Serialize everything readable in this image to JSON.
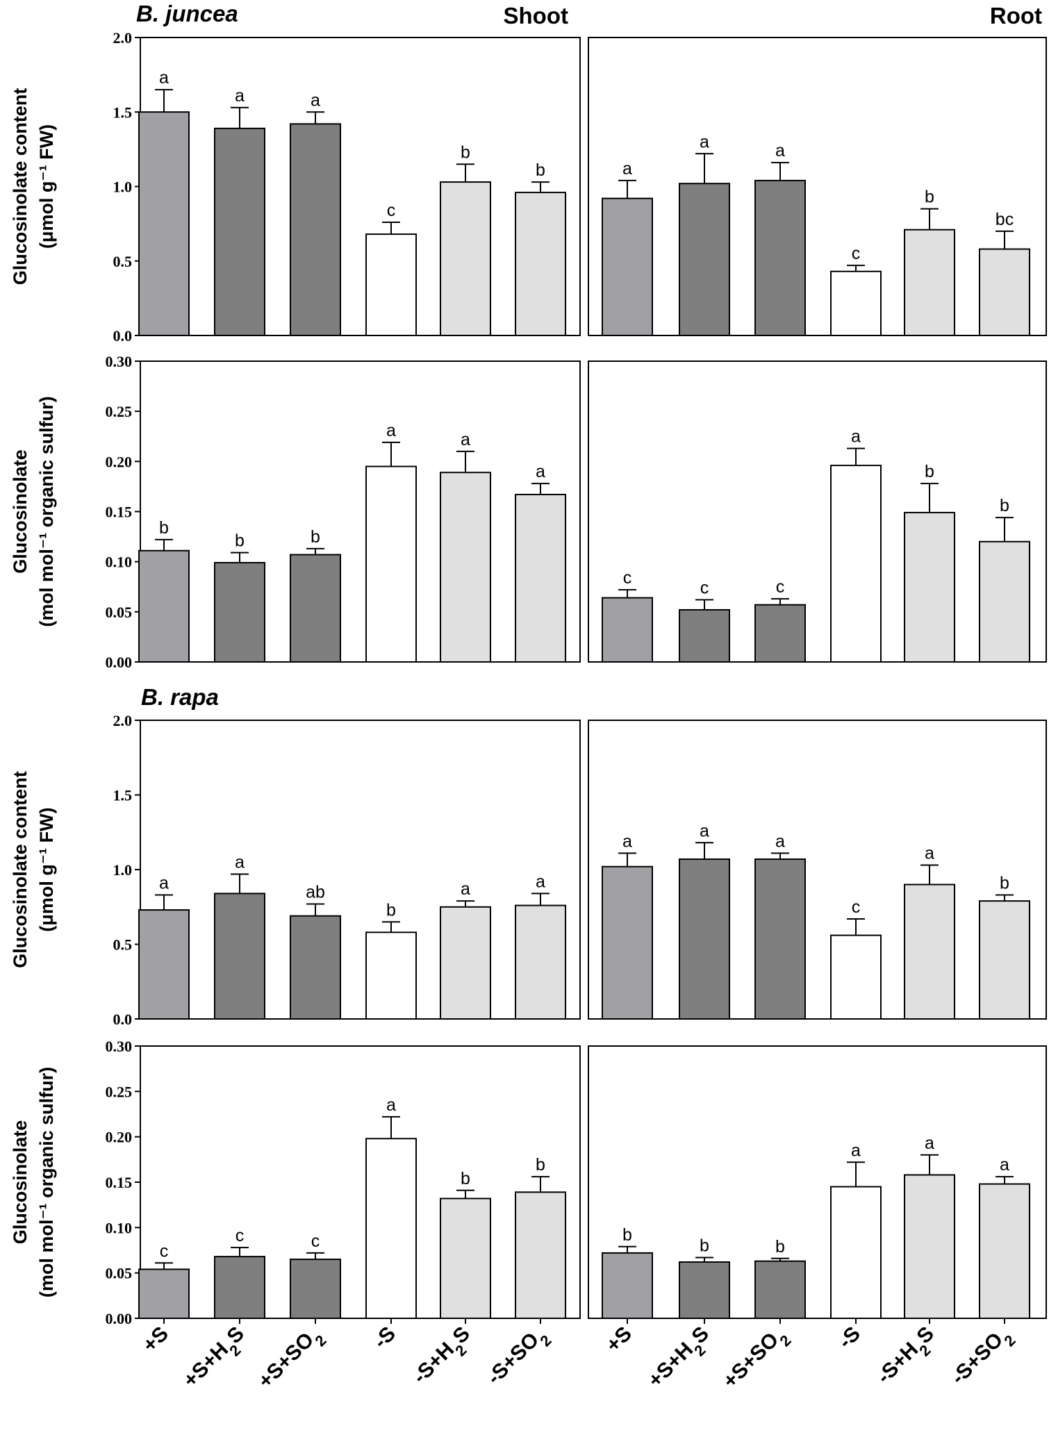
{
  "figure": {
    "species": [
      "B. juncea",
      "B. rapa"
    ],
    "tissues": [
      "Shoot",
      "Root"
    ]
  },
  "colors": {
    "+S": "#a0a0a5",
    "+S+H2S": "#7f7f7f",
    "+S+SO2": "#7f7f7f",
    "-S": "#ffffff",
    "-S+H2S": "#e0e0e0",
    "-S+SO2": "#e0e0e0"
  },
  "chart_data": [
    {
      "type": "bar",
      "species": "B. juncea",
      "tissue": "Shoot",
      "heading": "Shoot",
      "ylabel_line1": "Glucosinolate content",
      "ylabel_unit": "μmol g⁻¹ FW",
      "ylim": [
        0,
        2.0
      ],
      "ticks": [
        "0.0",
        "0.5",
        "1.0",
        "1.5",
        "2.0"
      ],
      "categories": [
        "+S",
        "+S+H2S",
        "+S+SO2",
        "-S",
        "-S+H2S",
        "-S+SO2"
      ],
      "values": [
        1.5,
        1.39,
        1.42,
        0.68,
        1.03,
        0.96
      ],
      "errors": [
        0.15,
        0.14,
        0.08,
        0.08,
        0.12,
        0.07
      ],
      "letters": [
        "a",
        "a",
        "a",
        "c",
        "b",
        "b"
      ]
    },
    {
      "type": "bar",
      "species": "B. juncea",
      "tissue": "Root",
      "heading": "Root",
      "ylim": [
        0,
        2.0
      ],
      "categories": [
        "+S",
        "+S+H2S",
        "+S+SO2",
        "-S",
        "-S+H2S",
        "-S+SO2"
      ],
      "values": [
        0.92,
        1.02,
        1.04,
        0.43,
        0.71,
        0.58
      ],
      "errors": [
        0.12,
        0.2,
        0.12,
        0.04,
        0.14,
        0.12
      ],
      "letters": [
        "a",
        "a",
        "a",
        "c",
        "b",
        "bc"
      ]
    },
    {
      "type": "bar",
      "species": "B. juncea",
      "tissue": "Shoot",
      "ylabel_line1": "Glucosinolate",
      "ylabel_unit": "mol mol⁻¹ organic sulfur",
      "ylim": [
        0,
        0.3
      ],
      "ticks": [
        "0.00",
        "0.05",
        "0.10",
        "0.15",
        "0.20",
        "0.25",
        "0.30"
      ],
      "categories": [
        "+S",
        "+S+H2S",
        "+S+SO2",
        "-S",
        "-S+H2S",
        "-S+SO2"
      ],
      "values": [
        0.111,
        0.099,
        0.107,
        0.195,
        0.189,
        0.167
      ],
      "errors": [
        0.011,
        0.01,
        0.006,
        0.024,
        0.021,
        0.011
      ],
      "letters": [
        "b",
        "b",
        "b",
        "a",
        "a",
        "a"
      ]
    },
    {
      "type": "bar",
      "species": "B. juncea",
      "tissue": "Root",
      "ylim": [
        0,
        0.3
      ],
      "categories": [
        "+S",
        "+S+H2S",
        "+S+SO2",
        "-S",
        "-S+H2S",
        "-S+SO2"
      ],
      "values": [
        0.064,
        0.052,
        0.057,
        0.196,
        0.149,
        0.12
      ],
      "errors": [
        0.008,
        0.01,
        0.006,
        0.017,
        0.029,
        0.024
      ],
      "letters": [
        "c",
        "c",
        "c",
        "a",
        "b",
        "b"
      ]
    },
    {
      "type": "bar",
      "species": "B. rapa",
      "tissue": "Shoot",
      "ylabel_line1": "Glucosinolate content",
      "ylabel_unit": "μmol g⁻¹ FW",
      "ylim": [
        0,
        2.0
      ],
      "ticks": [
        "0.0",
        "0.5",
        "1.0",
        "1.5",
        "2.0"
      ],
      "categories": [
        "+S",
        "+S+H2S",
        "+S+SO2",
        "-S",
        "-S+H2S",
        "-S+SO2"
      ],
      "values": [
        0.73,
        0.84,
        0.69,
        0.58,
        0.75,
        0.76
      ],
      "errors": [
        0.1,
        0.13,
        0.08,
        0.07,
        0.04,
        0.08
      ],
      "letters": [
        "a",
        "a",
        "ab",
        "b",
        "a",
        "a"
      ]
    },
    {
      "type": "bar",
      "species": "B. rapa",
      "tissue": "Root",
      "ylim": [
        0,
        2.0
      ],
      "categories": [
        "+S",
        "+S+H2S",
        "+S+SO2",
        "-S",
        "-S+H2S",
        "-S+SO2"
      ],
      "values": [
        1.02,
        1.07,
        1.07,
        0.56,
        0.9,
        0.79
      ],
      "errors": [
        0.09,
        0.11,
        0.04,
        0.11,
        0.13,
        0.04
      ],
      "letters": [
        "a",
        "a",
        "a",
        "c",
        "a",
        "b"
      ]
    },
    {
      "type": "bar",
      "species": "B. rapa",
      "tissue": "Shoot",
      "ylabel_line1": "Glucosinolate",
      "ylabel_unit": "mol mol⁻¹ organic sulfur",
      "ylim": [
        0,
        0.3
      ],
      "ticks": [
        "0.00",
        "0.05",
        "0.10",
        "0.15",
        "0.20",
        "0.25",
        "0.30"
      ],
      "categories": [
        "+S",
        "+S+H2S",
        "+S+SO2",
        "-S",
        "-S+H2S",
        "-S+SO2"
      ],
      "values": [
        0.054,
        0.068,
        0.065,
        0.198,
        0.132,
        0.139
      ],
      "errors": [
        0.007,
        0.01,
        0.007,
        0.024,
        0.009,
        0.017
      ],
      "letters": [
        "c",
        "c",
        "c",
        "a",
        "b",
        "b"
      ]
    },
    {
      "type": "bar",
      "species": "B. rapa",
      "tissue": "Root",
      "ylim": [
        0,
        0.3
      ],
      "categories": [
        "+S",
        "+S+H2S",
        "+S+SO2",
        "-S",
        "-S+H2S",
        "-S+SO2"
      ],
      "values": [
        0.072,
        0.062,
        0.063,
        0.145,
        0.158,
        0.148
      ],
      "errors": [
        0.007,
        0.005,
        0.003,
        0.027,
        0.022,
        0.008
      ],
      "letters": [
        "b",
        "b",
        "b",
        "a",
        "a",
        "a"
      ]
    }
  ]
}
